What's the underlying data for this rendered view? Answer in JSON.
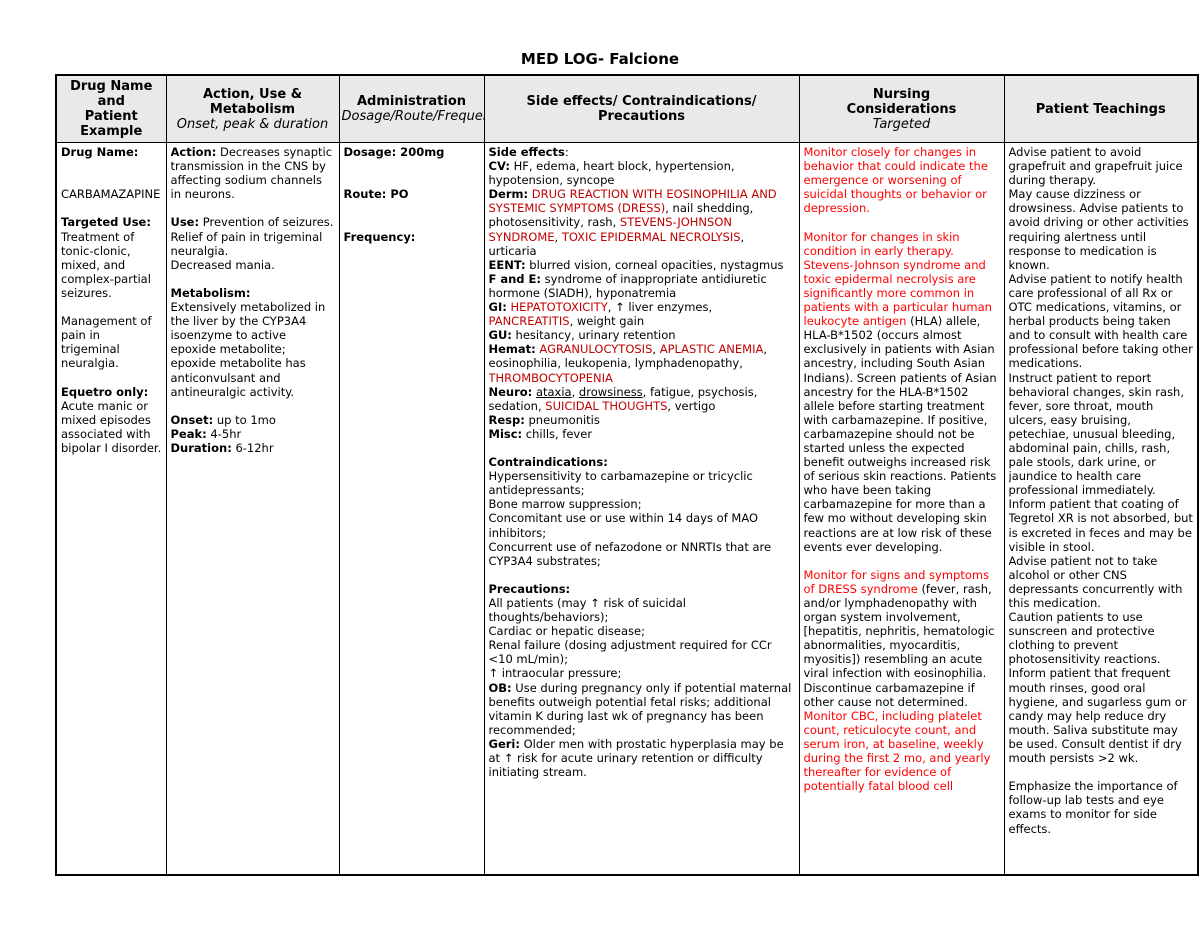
{
  "title": "MED LOG- Falcione",
  "colors": {
    "nursing_red": "#ff0000",
    "side_effect_caps_red": "#c00000",
    "header_bg": "#e9e9e9",
    "border": "#000000"
  },
  "table": {
    "columns": [
      {
        "title": "Drug Name\nand\nPatient\nExample",
        "subtitle": ""
      },
      {
        "title": "Action, Use &\nMetabolism",
        "subtitle": "Onset, peak & duration"
      },
      {
        "title": "Administration",
        "subtitle": "Dosage/Route/Frequency"
      },
      {
        "title": "Side effects/ Contraindications/\nPrecautions",
        "subtitle": ""
      },
      {
        "title": "Nursing\nConsiderations",
        "subtitle": "Targeted"
      },
      {
        "title": "Patient Teachings",
        "subtitle": ""
      }
    ],
    "row": {
      "drug": [
        [
          {
            "t": "Drug Name:",
            "s": "b"
          }
        ],
        [],
        [],
        [
          {
            "t": "CARBAMAZAPINE"
          }
        ],
        [],
        [
          {
            "t": "Targeted Use:",
            "s": "b"
          },
          {
            "t": " Treatment of tonic-clonic, mixed, and complex-partial seizures."
          }
        ],
        [],
        [
          {
            "t": "Management of pain in trigeminal neuralgia."
          }
        ],
        [],
        [
          {
            "t": "Equetro only:",
            "s": "b"
          },
          {
            "t": " Acute manic or mixed episodes associated with bipolar I disorder."
          }
        ]
      ],
      "action": [
        [
          {
            "t": "Action:",
            "s": "b"
          },
          {
            "t": " Decreases synaptic transmission in the CNS by affecting sodium channels in neurons."
          }
        ],
        [],
        [
          {
            "t": "Use:",
            "s": "b"
          },
          {
            "t": " Prevention of seizures."
          }
        ],
        [
          {
            "t": "Relief of pain in trigeminal neuralgia."
          }
        ],
        [
          {
            "t": "Decreased mania."
          }
        ],
        [],
        [
          {
            "t": "Metabolism:",
            "s": "b"
          }
        ],
        [
          {
            "t": "Extensively metabolized in the liver by the CYP3A4 isoenzyme to active epoxide metabolite; epoxide metabolite has anticonvulsant and antineuralgic activity."
          }
        ],
        [],
        [
          {
            "t": "Onset:",
            "s": "b"
          },
          {
            "t": " up to 1mo"
          }
        ],
        [
          {
            "t": "Peak:",
            "s": "b"
          },
          {
            "t": " 4-5hr"
          }
        ],
        [
          {
            "t": "Duration:",
            "s": "b"
          },
          {
            "t": " 6-12hr"
          }
        ]
      ],
      "admin": [
        [
          {
            "t": "Dosage: 200mg",
            "s": "b"
          }
        ],
        [],
        [],
        [
          {
            "t": "Route: PO",
            "s": "b"
          }
        ],
        [],
        [],
        [
          {
            "t": "Frequency:",
            "s": "b"
          }
        ]
      ],
      "side": [
        [
          {
            "t": "Side effects",
            "s": "b"
          },
          {
            "t": ":"
          }
        ],
        [
          {
            "t": "CV:",
            "s": "b"
          },
          {
            "t": " HF, edema, heart block, hypertension, hypotension, syncope"
          }
        ],
        [
          {
            "t": "Derm:",
            "s": "b"
          },
          {
            "t": " "
          },
          {
            "t": "DRUG REACTION WITH EOSINOPHILIA AND SYSTEMIC SYMPTOMS (DRESS)",
            "s": "d"
          },
          {
            "t": ", nail shedding, photosensitivity, rash, "
          },
          {
            "t": "STEVENS-JOHNSON SYNDROME",
            "s": "d"
          },
          {
            "t": ", "
          },
          {
            "t": "TOXIC EPIDERMAL NECROLYSIS",
            "s": "d"
          },
          {
            "t": ", urticaria"
          }
        ],
        [
          {
            "t": "EENT:",
            "s": "b"
          },
          {
            "t": " blurred vision, corneal opacities, nystagmus"
          }
        ],
        [
          {
            "t": "F and E:",
            "s": "b"
          },
          {
            "t": " syndrome of inappropriate antidiuretic hormone (SIADH), hyponatremia"
          }
        ],
        [
          {
            "t": "GI:",
            "s": "b"
          },
          {
            "t": " "
          },
          {
            "t": "HEPATOTOXICITY",
            "s": "d"
          },
          {
            "t": ", ↑ liver enzymes, "
          },
          {
            "t": "PANCREATITIS",
            "s": "d"
          },
          {
            "t": ", weight gain"
          }
        ],
        [
          {
            "t": "GU:",
            "s": "b"
          },
          {
            "t": " hesitancy, urinary retention"
          }
        ],
        [
          {
            "t": "Hemat:",
            "s": "b"
          },
          {
            "t": " "
          },
          {
            "t": "AGRANULOCYTOSIS",
            "s": "d"
          },
          {
            "t": ", "
          },
          {
            "t": "APLASTIC ANEMIA",
            "s": "d"
          },
          {
            "t": ", eosinophilia, leukopenia, lymphadenopathy, "
          },
          {
            "t": "THROMBOCYTOPENIA",
            "s": "d"
          }
        ],
        [
          {
            "t": "Neuro:",
            "s": "b"
          },
          {
            "t": " "
          },
          {
            "t": "ataxia",
            "s": "u"
          },
          {
            "t": ", "
          },
          {
            "t": "drowsiness",
            "s": "u"
          },
          {
            "t": ", fatigue, psychosis, sedation, "
          },
          {
            "t": "SUICIDAL THOUGHTS",
            "s": "d"
          },
          {
            "t": ", vertigo"
          }
        ],
        [
          {
            "t": "Resp:",
            "s": "b"
          },
          {
            "t": " pneumonitis"
          }
        ],
        [
          {
            "t": "Misc:",
            "s": "b"
          },
          {
            "t": " chills, fever"
          }
        ],
        [],
        [
          {
            "t": "Contraindications:",
            "s": "b"
          }
        ],
        [
          {
            "t": "Hypersensitivity to carbamazepine or tricyclic antidepressants;"
          }
        ],
        [
          {
            "t": "Bone marrow suppression;"
          }
        ],
        [
          {
            "t": "Concomitant use or use within 14 days of MAO inhibitors;"
          }
        ],
        [
          {
            "t": "Concurrent use of nefazodone or NNRTIs that are CYP3A4 substrates;"
          }
        ],
        [],
        [
          {
            "t": "Precautions:",
            "s": "b"
          }
        ],
        [
          {
            "t": "All patients (may ↑ risk of suicidal thoughts/behaviors);"
          }
        ],
        [
          {
            "t": "Cardiac or hepatic disease;"
          }
        ],
        [
          {
            "t": "Renal failure (dosing adjustment required for CCr <10 mL/min);"
          }
        ],
        [
          {
            "t": "↑ intraocular pressure;"
          }
        ],
        [
          {
            "t": "OB:",
            "s": "b"
          },
          {
            "t": " Use during pregnancy only if potential maternal benefits outweigh potential fetal risks; additional vitamin K during last wk of pregnancy has been recommended;"
          }
        ],
        [
          {
            "t": "Geri:",
            "s": "b"
          },
          {
            "t": " Older men with prostatic hyperplasia may be at ↑ risk for acute urinary retention or difficulty initiating stream."
          }
        ]
      ],
      "nursing": [
        [
          {
            "t": "Monitor closely for changes in behavior that could indicate the emergence or worsening of suicidal thoughts or behavior or depression.",
            "s": "r"
          }
        ],
        [],
        [
          {
            "t": "Monitor for changes in skin condition in early therapy. Stevens-Johnson syndrome and toxic epidermal necrolysis are significantly more common in patients with a particular human leukocyte antigen ",
            "s": "r"
          },
          {
            "t": "(HLA) allele, HLA-B*1502 (occurs almost exclusively in patients with Asian ancestry, including South Asian Indians). Screen patients of Asian ancestry for the HLA-B*1502 allele before starting treatment with carbamazepine. If positive, carbamazepine should not be started unless the expected benefit outweighs increased risk of serious skin reactions. Patients who have been taking carbamazepine for more than a few mo without developing skin reactions are at low risk of these events ever developing."
          }
        ],
        [],
        [
          {
            "t": "Monitor for signs and symptoms of DRESS syndrome ",
            "s": "r"
          },
          {
            "t": "(fever, rash, and/or lymphadenopathy with organ system involvement, [hepatitis, nephritis, hematologic abnormalities, myocarditis, myositis]) resembling an acute viral infection with eosinophilia. Discontinue carbamazepine if other cause not determined. "
          },
          {
            "t": "Monitor CBC, including platelet count, reticulocyte count, and serum iron, at baseline, weekly during the first 2 mo, and yearly thereafter for evidence of potentially fatal blood cell",
            "s": "r"
          }
        ]
      ],
      "teach": [
        [
          {
            "t": "Advise patient to avoid grapefruit and grapefruit juice during therapy."
          }
        ],
        [
          {
            "t": "May cause dizziness or drowsiness. Advise patients to avoid driving or other activities requiring alertness until response to medication is known."
          }
        ],
        [
          {
            "t": "Advise patient to notify health care professional of all Rx or OTC medications, vitamins, or herbal products being taken and to consult with health care professional before taking other medications."
          }
        ],
        [
          {
            "t": "Instruct patient to report behavioral changes, skin rash, fever, sore throat, mouth ulcers, easy bruising, petechiae, unusual bleeding, abdominal pain, chills, rash, pale stools, dark urine, or jaundice to health care professional immediately."
          }
        ],
        [
          {
            "t": "Inform patient that coating of Tegretol XR is not absorbed, but is excreted in feces and may be visible in stool."
          }
        ],
        [
          {
            "t": "Advise patient not to take alcohol or other CNS depressants concurrently with this medication."
          }
        ],
        [
          {
            "t": "Caution patients to use sunscreen and protective clothing to prevent photosensitivity reactions."
          }
        ],
        [
          {
            "t": "Inform patient that frequent mouth rinses, good oral hygiene, and sugarless gum or candy may help reduce dry mouth. Saliva substitute may be used. Consult dentist if dry mouth persists >2 wk."
          }
        ],
        [],
        [
          {
            "t": "Emphasize the importance of follow-up lab tests and eye exams to monitor for side effects."
          }
        ]
      ]
    }
  }
}
